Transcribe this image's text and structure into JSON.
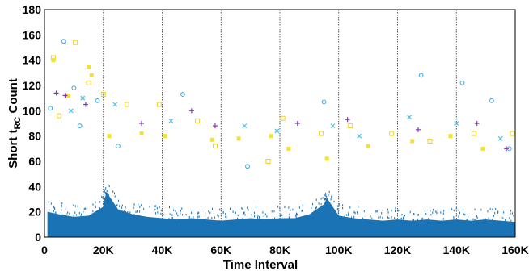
{
  "chart_data": {
    "type": "scatter",
    "title": "",
    "xlabel": "Time Interval",
    "ylabel_main": "Short t",
    "ylabel_sub": "RC",
    "ylabel_tail": " Count",
    "xlim": [
      0,
      160000
    ],
    "ylim": [
      0,
      180
    ],
    "xticks": [
      0,
      20000,
      40000,
      60000,
      80000,
      100000,
      120000,
      140000,
      160000
    ],
    "xtick_labels": [
      "0",
      "20K",
      "40K",
      "60K",
      "80K",
      "100K",
      "120K",
      "140K",
      "160K"
    ],
    "yticks": [
      0,
      20,
      40,
      60,
      80,
      100,
      120,
      140,
      160,
      180
    ],
    "ytick_labels": [
      "0",
      "20",
      "40",
      "60",
      "80",
      "100",
      "120",
      "140",
      "160",
      "180"
    ],
    "vertical_dividers": [
      20000,
      40000,
      60000,
      80000,
      100000,
      120000,
      140000
    ],
    "grid": false,
    "legend": "none",
    "colors": {
      "dense": "#1a73b5",
      "circle": "#3aa6d8",
      "square": "#f0d21a",
      "filled_square": "#f2e233",
      "plus": "#8a36b8",
      "cross": "#4cc0e8"
    },
    "series": [
      {
        "marker": "dense-points",
        "color": "#1a73b5",
        "points": [
          [
            1000,
            20
          ],
          [
            5000,
            18
          ],
          [
            10000,
            16
          ],
          [
            15000,
            17
          ],
          [
            20000,
            24
          ],
          [
            21000,
            36
          ],
          [
            25000,
            22
          ],
          [
            30000,
            18
          ],
          [
            35000,
            16
          ],
          [
            40000,
            15
          ],
          [
            45000,
            14
          ],
          [
            50000,
            15
          ],
          [
            55000,
            14
          ],
          [
            60000,
            13
          ],
          [
            65000,
            14
          ],
          [
            70000,
            15
          ],
          [
            75000,
            14
          ],
          [
            80000,
            15
          ],
          [
            85000,
            15
          ],
          [
            90000,
            18
          ],
          [
            95000,
            26
          ],
          [
            96000,
            31
          ],
          [
            100000,
            17
          ],
          [
            105000,
            15
          ],
          [
            110000,
            14
          ],
          [
            115000,
            13
          ],
          [
            120000,
            14
          ],
          [
            125000,
            13
          ],
          [
            130000,
            14
          ],
          [
            135000,
            13
          ],
          [
            140000,
            14
          ],
          [
            145000,
            13
          ],
          [
            150000,
            14
          ],
          [
            155000,
            13
          ],
          [
            160000,
            12
          ]
        ]
      },
      {
        "marker": "open-circle",
        "color": "#3aa6d8",
        "points": [
          [
            2000,
            102
          ],
          [
            6500,
            155
          ],
          [
            10000,
            118
          ],
          [
            12000,
            88
          ],
          [
            18000,
            108
          ],
          [
            25000,
            72
          ],
          [
            47000,
            113
          ],
          [
            69000,
            56
          ],
          [
            95000,
            107
          ],
          [
            128000,
            128
          ],
          [
            142000,
            122
          ],
          [
            152000,
            108
          ],
          [
            158000,
            70
          ]
        ]
      },
      {
        "marker": "open-square",
        "color": "#f0d21a",
        "points": [
          [
            3000,
            142
          ],
          [
            5000,
            96
          ],
          [
            10500,
            154
          ],
          [
            15000,
            122
          ],
          [
            20000,
            113
          ],
          [
            28000,
            105
          ],
          [
            39000,
            105
          ],
          [
            52000,
            92
          ],
          [
            58000,
            72
          ],
          [
            76000,
            60
          ],
          [
            81000,
            94
          ],
          [
            94000,
            82
          ],
          [
            104000,
            88
          ],
          [
            118000,
            82
          ],
          [
            131000,
            76
          ],
          [
            146000,
            82
          ],
          [
            159000,
            82
          ]
        ]
      },
      {
        "marker": "filled-square",
        "color": "#f2e233",
        "points": [
          [
            3000,
            140
          ],
          [
            8000,
            112
          ],
          [
            15000,
            135
          ],
          [
            16000,
            128
          ],
          [
            22000,
            80
          ],
          [
            33000,
            82
          ],
          [
            41000,
            80
          ],
          [
            57000,
            77
          ],
          [
            66000,
            78
          ],
          [
            77000,
            80
          ],
          [
            83000,
            70
          ],
          [
            96000,
            62
          ],
          [
            110000,
            72
          ],
          [
            125000,
            76
          ],
          [
            138000,
            80
          ],
          [
            149000,
            70
          ]
        ]
      },
      {
        "marker": "plus",
        "color": "#8a36b8",
        "points": [
          [
            4000,
            114
          ],
          [
            7000,
            112
          ],
          [
            14000,
            105
          ],
          [
            33000,
            90
          ],
          [
            50000,
            100
          ],
          [
            58000,
            88
          ],
          [
            86000,
            90
          ],
          [
            103000,
            93
          ],
          [
            127000,
            85
          ],
          [
            147000,
            90
          ],
          [
            157000,
            70
          ]
        ]
      },
      {
        "marker": "cross",
        "color": "#4cc0e8",
        "points": [
          [
            9000,
            100
          ],
          [
            13000,
            110
          ],
          [
            24000,
            105
          ],
          [
            43000,
            92
          ],
          [
            68000,
            88
          ],
          [
            79000,
            84
          ],
          [
            98000,
            88
          ],
          [
            107000,
            80
          ],
          [
            124000,
            95
          ],
          [
            140000,
            90
          ],
          [
            155000,
            78
          ]
        ]
      }
    ]
  }
}
